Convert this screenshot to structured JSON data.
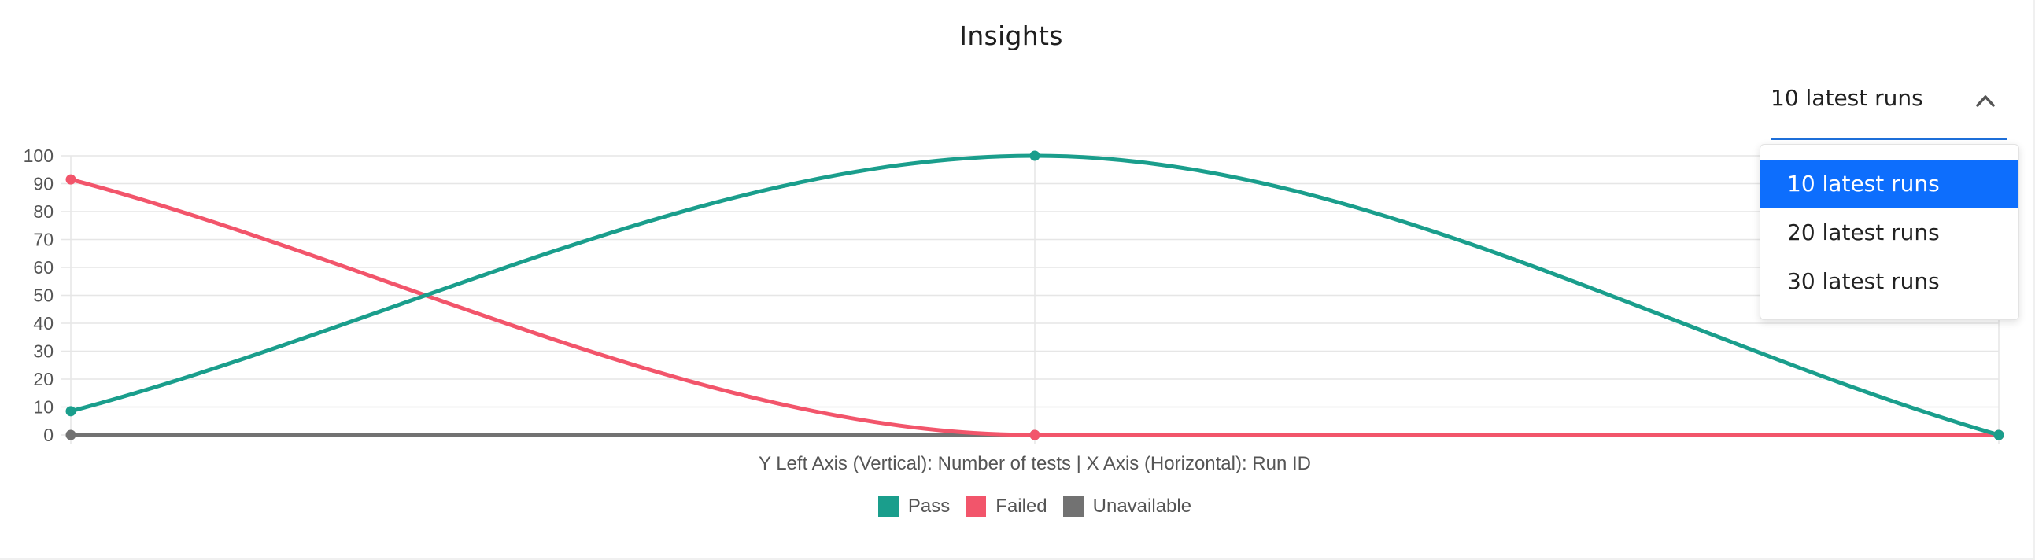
{
  "title": "Insights",
  "range_select": {
    "value": "10 latest runs",
    "options": [
      "10 latest runs",
      "20 latest runs",
      "30 latest runs"
    ],
    "selected_index": 0,
    "open": true
  },
  "axis_caption": "Y Left Axis (Vertical): Number of tests  |  X Axis (Horizontal): Run ID",
  "colors": {
    "pass": "#1a9e8c",
    "failed": "#f2556b",
    "unavailable": "#727272",
    "grid": "#e6e6e6",
    "select_accent": "#1e6fd9",
    "menu_selected": "#0d6efd"
  },
  "chart_data": {
    "type": "line",
    "title": "",
    "xlabel": "Run ID",
    "ylabel": "Number of tests",
    "x": [
      "",
      "",
      ""
    ],
    "ylim": [
      0,
      100
    ],
    "yticks": [
      0,
      10,
      20,
      30,
      40,
      50,
      60,
      70,
      80,
      90,
      100
    ],
    "grid": true,
    "legend_position": "bottom",
    "series": [
      {
        "name": "Pass",
        "color": "#1a9e8c",
        "values": [
          8.5,
          100,
          0
        ]
      },
      {
        "name": "Failed",
        "color": "#f2556b",
        "values": [
          91.5,
          0,
          0
        ]
      },
      {
        "name": "Unavailable",
        "color": "#727272",
        "values": [
          0,
          0,
          0
        ]
      }
    ]
  }
}
